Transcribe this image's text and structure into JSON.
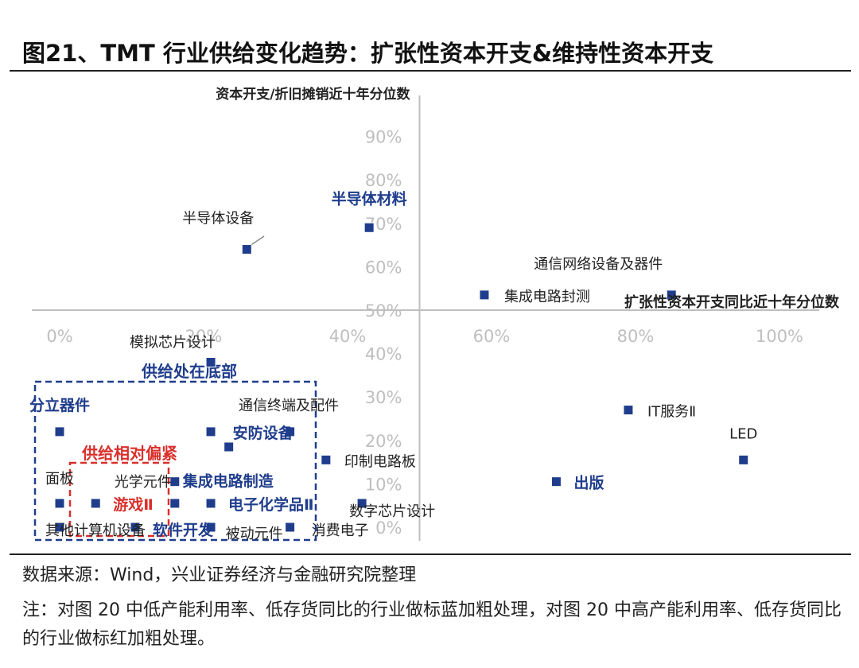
{
  "figure": {
    "title": "图21、TMT 行业供给变化趋势：扩张性资本开支&维持性资本开支"
  },
  "footer": {
    "source": "数据来源：Wind，兴业证券经济与金融研究院整理",
    "note": "注：对图 20 中低产能利用率、低存货同比的行业做标蓝加粗处理，对图 20 中高产能利用率、低存货同比的行业做标红加粗处理。"
  },
  "colors": {
    "marker": "#1f3d8c",
    "blue_label": "#1f3d8c",
    "red_label": "#d9302c",
    "axis": "#bfbfbf",
    "tick": "#bfbfbf",
    "box_blue": "#1f3d8c",
    "box_red": "#d9302c"
  },
  "chart_data": {
    "type": "scatter",
    "xlabel": "扩张性资本开支同比近十年分位数",
    "ylabel": "资本开支/折旧摊销近十年分位数",
    "xlim": [
      -0.01,
      1.01
    ],
    "ylim": [
      -0.02,
      1.0
    ],
    "x_ticks": [
      "0%",
      "20%",
      "40%",
      "60%",
      "80%",
      "100%"
    ],
    "x_tick_values": [
      0,
      0.2,
      0.4,
      0.6,
      0.8,
      1.0
    ],
    "y_ticks": [
      "0%",
      "10%",
      "20%",
      "30%",
      "40%",
      "50%",
      "60%",
      "70%",
      "80%",
      "90%"
    ],
    "y_tick_values": [
      0,
      0.1,
      0.2,
      0.3,
      0.4,
      0.5,
      0.6,
      0.7,
      0.8,
      0.9
    ],
    "axis_cross": {
      "x": 0.5,
      "y": 0.5
    },
    "points": [
      {
        "label": "半导体设备",
        "x": 0.26,
        "y": 0.64,
        "style": "normal"
      },
      {
        "label": "半导体材料",
        "x": 0.43,
        "y": 0.69,
        "style": "blue"
      },
      {
        "label": "集成电路封测",
        "x": 0.59,
        "y": 0.535,
        "style": "normal"
      },
      {
        "label": "通信网络设备及器件",
        "x": 0.85,
        "y": 0.535,
        "style": "normal"
      },
      {
        "label": "模拟芯片设计",
        "x": 0.21,
        "y": 0.38,
        "style": "normal"
      },
      {
        "label": "分立器件",
        "x": 0.0,
        "y": 0.22,
        "style": "blue"
      },
      {
        "label": "通信终端及配件",
        "x": 0.21,
        "y": 0.22,
        "style": "normal"
      },
      {
        "label": "安防设备",
        "x": 0.32,
        "y": 0.22,
        "style": "blue"
      },
      {
        "label": "",
        "x": 0.235,
        "y": 0.185,
        "style": "normal"
      },
      {
        "label": "印制电路板",
        "x": 0.37,
        "y": 0.155,
        "style": "normal"
      },
      {
        "label": "IT服务Ⅱ",
        "x": 0.79,
        "y": 0.27,
        "style": "normal"
      },
      {
        "label": "LED",
        "x": 0.95,
        "y": 0.155,
        "style": "normal"
      },
      {
        "label": "出版",
        "x": 0.69,
        "y": 0.105,
        "style": "blue"
      },
      {
        "label": "集成电路制造",
        "x": 0.16,
        "y": 0.105,
        "style": "blue"
      },
      {
        "label": "面板",
        "x": 0.0,
        "y": 0.055,
        "style": "normal"
      },
      {
        "label": "游戏Ⅱ",
        "x": 0.05,
        "y": 0.055,
        "style": "red"
      },
      {
        "label": "光学元件",
        "x": 0.16,
        "y": 0.055,
        "style": "normal"
      },
      {
        "label": "电子化学品Ⅱ",
        "x": 0.21,
        "y": 0.055,
        "style": "blue"
      },
      {
        "label": "数字芯片设计",
        "x": 0.42,
        "y": 0.055,
        "style": "normal"
      },
      {
        "label": "其他计算机设备",
        "x": 0.0,
        "y": 0.0,
        "style": "normal"
      },
      {
        "label": "",
        "x": 0.105,
        "y": 0.0,
        "style": "normal"
      },
      {
        "label": "软件开发",
        "x": 0.21,
        "y": 0.0,
        "style": "blue"
      },
      {
        "label": "被动元件",
        "x": 0.32,
        "y": 0.0,
        "style": "normal"
      },
      {
        "label": "消费电子",
        "x": 0.32,
        "y": 0.0,
        "style": "normal"
      }
    ],
    "annotations": [
      {
        "text": "供给处在底部",
        "style": "blue"
      },
      {
        "text": "供给相对偏紧",
        "style": "red"
      }
    ]
  }
}
